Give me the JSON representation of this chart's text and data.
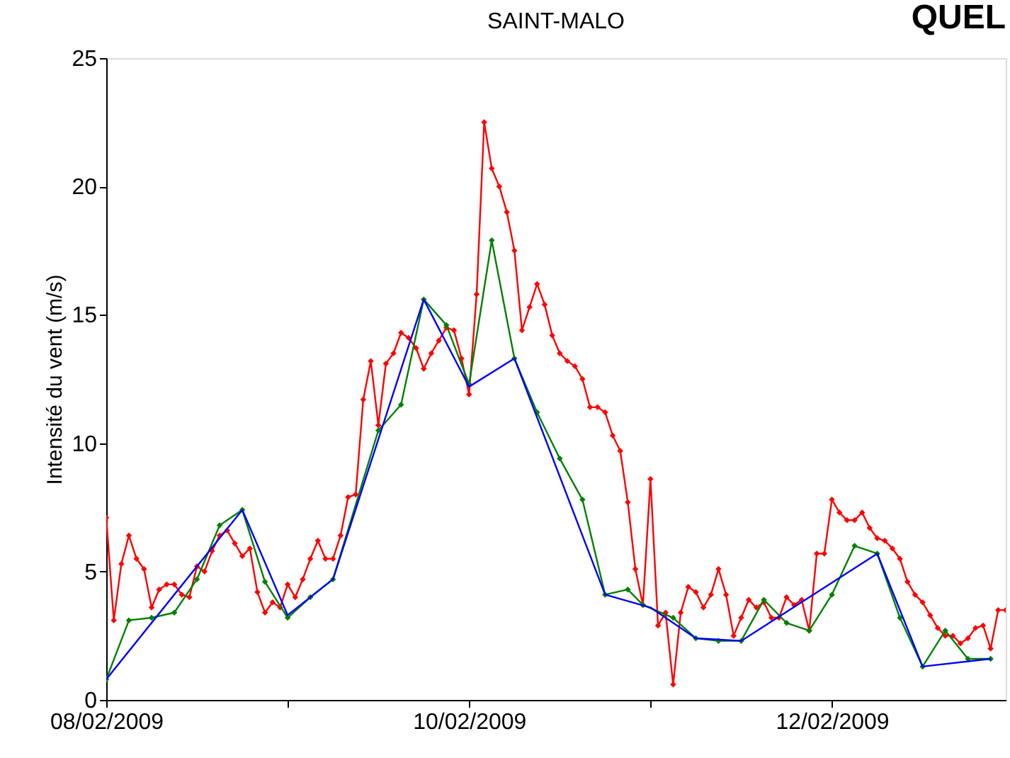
{
  "chart_data": {
    "type": "line",
    "title": "SAINT-MALO",
    "ylabel": "Intensité du vent (m/s)",
    "annotations": [
      "QUEL"
    ],
    "xlim": [
      "2009-02-08T00:00",
      "2009-02-12T23:00"
    ],
    "xticks": [
      {
        "value": "2009-02-08",
        "label": "08/02/2009"
      },
      {
        "value": "2009-02-09",
        "label": null
      },
      {
        "value": "2009-02-10",
        "label": "10/02/2009"
      },
      {
        "value": "2009-02-11",
        "label": null
      },
      {
        "value": "2009-02-12",
        "label": "12/02/2009"
      }
    ],
    "ylim": [
      0,
      25
    ],
    "yticks": [
      0,
      5,
      10,
      15,
      20,
      25
    ],
    "grid": false,
    "line_style": "solid",
    "series": [
      {
        "color": "#ff0000",
        "marker": "diamond",
        "x": [
          "2009-02-08T00:00",
          "2009-02-08T01:00",
          "2009-02-08T02:00",
          "2009-02-08T03:00",
          "2009-02-08T04:00",
          "2009-02-08T05:00",
          "2009-02-08T06:00",
          "2009-02-08T07:00",
          "2009-02-08T08:00",
          "2009-02-08T09:00",
          "2009-02-08T10:00",
          "2009-02-08T11:00",
          "2009-02-08T12:00",
          "2009-02-08T13:00",
          "2009-02-08T14:00",
          "2009-02-08T15:00",
          "2009-02-08T16:00",
          "2009-02-08T17:00",
          "2009-02-08T18:00",
          "2009-02-08T19:00",
          "2009-02-08T20:00",
          "2009-02-08T21:00",
          "2009-02-08T22:00",
          "2009-02-08T23:00",
          "2009-02-09T00:00",
          "2009-02-09T01:00",
          "2009-02-09T02:00",
          "2009-02-09T03:00",
          "2009-02-09T04:00",
          "2009-02-09T05:00",
          "2009-02-09T06:00",
          "2009-02-09T07:00",
          "2009-02-09T08:00",
          "2009-02-09T09:00",
          "2009-02-09T10:00",
          "2009-02-09T11:00",
          "2009-02-09T12:00",
          "2009-02-09T13:00",
          "2009-02-09T14:00",
          "2009-02-09T15:00",
          "2009-02-09T16:00",
          "2009-02-09T17:00",
          "2009-02-09T18:00",
          "2009-02-09T19:00",
          "2009-02-09T20:00",
          "2009-02-09T21:00",
          "2009-02-09T22:00",
          "2009-02-09T23:00",
          "2009-02-10T00:00",
          "2009-02-10T01:00",
          "2009-02-10T02:00",
          "2009-02-10T03:00",
          "2009-02-10T04:00",
          "2009-02-10T05:00",
          "2009-02-10T06:00",
          "2009-02-10T07:00",
          "2009-02-10T08:00",
          "2009-02-10T09:00",
          "2009-02-10T10:00",
          "2009-02-10T11:00",
          "2009-02-10T12:00",
          "2009-02-10T13:00",
          "2009-02-10T14:00",
          "2009-02-10T15:00",
          "2009-02-10T16:00",
          "2009-02-10T17:00",
          "2009-02-10T18:00",
          "2009-02-10T19:00",
          "2009-02-10T20:00",
          "2009-02-10T21:00",
          "2009-02-10T22:00",
          "2009-02-10T23:00",
          "2009-02-11T00:00",
          "2009-02-11T01:00",
          "2009-02-11T02:00",
          "2009-02-11T03:00",
          "2009-02-11T04:00",
          "2009-02-11T05:00",
          "2009-02-11T06:00",
          "2009-02-11T07:00",
          "2009-02-11T08:00",
          "2009-02-11T09:00",
          "2009-02-11T10:00",
          "2009-02-11T11:00",
          "2009-02-11T12:00",
          "2009-02-11T13:00",
          "2009-02-11T14:00",
          "2009-02-11T15:00",
          "2009-02-11T16:00",
          "2009-02-11T17:00",
          "2009-02-11T18:00",
          "2009-02-11T19:00",
          "2009-02-11T20:00",
          "2009-02-11T21:00",
          "2009-02-11T22:00",
          "2009-02-11T23:00",
          "2009-02-12T00:00",
          "2009-02-12T01:00",
          "2009-02-12T02:00",
          "2009-02-12T03:00",
          "2009-02-12T04:00",
          "2009-02-12T05:00",
          "2009-02-12T06:00",
          "2009-02-12T07:00",
          "2009-02-12T08:00",
          "2009-02-12T09:00",
          "2009-02-12T10:00",
          "2009-02-12T11:00",
          "2009-02-12T12:00",
          "2009-02-12T13:00",
          "2009-02-12T14:00",
          "2009-02-12T15:00",
          "2009-02-12T16:00",
          "2009-02-12T17:00",
          "2009-02-12T18:00",
          "2009-02-12T19:00",
          "2009-02-12T20:00",
          "2009-02-12T21:00",
          "2009-02-12T22:00",
          "2009-02-12T23:00"
        ],
        "values": [
          7.1,
          3.1,
          5.3,
          6.4,
          5.5,
          5.1,
          3.6,
          4.3,
          4.5,
          4.5,
          4.1,
          4.0,
          5.2,
          5.0,
          5.8,
          6.4,
          6.6,
          6.1,
          5.6,
          5.9,
          4.2,
          3.4,
          3.8,
          3.6,
          4.5,
          4.0,
          4.7,
          5.5,
          6.2,
          5.5,
          5.5,
          6.4,
          7.9,
          8.0,
          11.7,
          13.2,
          10.7,
          13.1,
          13.5,
          14.3,
          14.1,
          13.7,
          12.9,
          13.5,
          14.0,
          14.5,
          14.4,
          13.3,
          11.9,
          15.8,
          22.5,
          20.7,
          20.0,
          19.0,
          17.5,
          14.4,
          15.3,
          16.2,
          15.4,
          14.2,
          13.5,
          13.2,
          13.0,
          12.5,
          11.4,
          11.4,
          11.2,
          10.3,
          9.7,
          7.7,
          5.1,
          3.7,
          8.6,
          2.9,
          3.4,
          0.6,
          3.4,
          4.4,
          4.2,
          3.6,
          4.1,
          5.1,
          4.1,
          2.5,
          3.2,
          3.9,
          3.6,
          3.8,
          3.2,
          3.2,
          4.0,
          3.7,
          3.9,
          2.7,
          5.7,
          5.7,
          7.8,
          7.3,
          7.0,
          7.0,
          7.3,
          6.7,
          6.3,
          6.2,
          5.9,
          5.5,
          4.6,
          4.1,
          3.8,
          3.3,
          2.8,
          2.5,
          2.5,
          2.2,
          2.4,
          2.8,
          2.9,
          2.0,
          3.5,
          3.5
        ]
      },
      {
        "color": "#0000ff",
        "marker": "none",
        "x": [
          "2009-02-08T00:00",
          "2009-02-08T18:00",
          "2009-02-09T00:00",
          "2009-02-09T06:00",
          "2009-02-09T18:00",
          "2009-02-10T00:00",
          "2009-02-10T06:00",
          "2009-02-10T18:00",
          "2009-02-11T00:00",
          "2009-02-11T06:00",
          "2009-02-11T12:00",
          "2009-02-12T06:00",
          "2009-02-12T12:00",
          "2009-02-12T21:00"
        ],
        "values": [
          0.8,
          7.4,
          3.3,
          4.7,
          15.6,
          12.2,
          13.3,
          4.1,
          3.6,
          2.4,
          2.3,
          5.7,
          1.3,
          1.6
        ]
      },
      {
        "color": "#008000",
        "marker": "diamond",
        "x": [
          "2009-02-08T00:00",
          "2009-02-08T03:00",
          "2009-02-08T06:00",
          "2009-02-08T09:00",
          "2009-02-08T12:00",
          "2009-02-08T15:00",
          "2009-02-08T18:00",
          "2009-02-08T21:00",
          "2009-02-09T00:00",
          "2009-02-09T03:00",
          "2009-02-09T06:00",
          "2009-02-09T12:00",
          "2009-02-09T15:00",
          "2009-02-09T18:00",
          "2009-02-09T21:00",
          "2009-02-10T00:00",
          "2009-02-10T03:00",
          "2009-02-10T06:00",
          "2009-02-10T09:00",
          "2009-02-10T12:00",
          "2009-02-10T15:00",
          "2009-02-10T18:00",
          "2009-02-10T21:00",
          "2009-02-10T23:00",
          "2009-02-11T03:00",
          "2009-02-11T06:00",
          "2009-02-11T09:00",
          "2009-02-11T12:00",
          "2009-02-11T15:00",
          "2009-02-11T18:00",
          "2009-02-11T21:00",
          "2009-02-12T00:00",
          "2009-02-12T03:00",
          "2009-02-12T06:00",
          "2009-02-12T09:00",
          "2009-02-12T12:00",
          "2009-02-12T15:00",
          "2009-02-12T18:00",
          "2009-02-12T21:00"
        ],
        "values": [
          0.8,
          3.1,
          3.2,
          3.4,
          4.7,
          6.8,
          7.4,
          4.6,
          3.2,
          4.0,
          4.7,
          10.5,
          11.5,
          15.6,
          14.6,
          12.3,
          17.9,
          13.3,
          11.2,
          9.4,
          7.8,
          4.1,
          4.3,
          3.7,
          3.2,
          2.4,
          2.3,
          2.3,
          3.9,
          3.0,
          2.7,
          4.1,
          6.0,
          5.7,
          3.2,
          1.3,
          2.7,
          1.6,
          1.6
        ]
      }
    ]
  }
}
